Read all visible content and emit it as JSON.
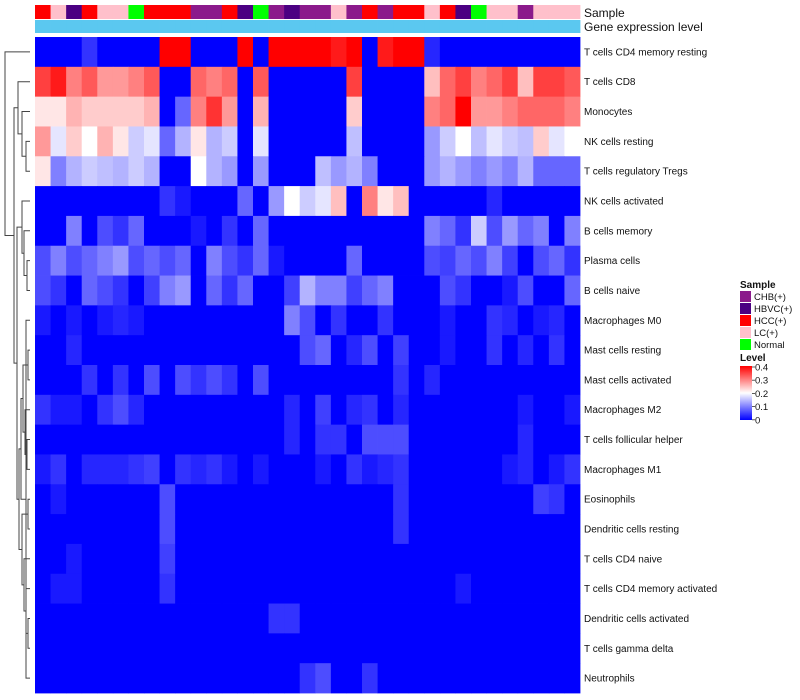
{
  "chart_data": {
    "type": "heatmap",
    "annotation_tracks": [
      "Sample",
      "Gene expression level"
    ],
    "row_labels": [
      "T cells CD4 memory resting",
      "T cells CD8",
      "Monocytes",
      "NK cells resting",
      "T cells regulatory  Tregs",
      "NK cells activated",
      "B cells memory",
      "Plasma cells",
      "B cells naive",
      "Macrophages M0",
      "Mast cells resting",
      "Mast cells activated",
      "Macrophages M2",
      "T cells follicular helper",
      "Macrophages M1",
      "Eosinophils",
      "Dendritic cells resting",
      "T cells CD4 naive",
      "T cells CD4 memory activated",
      "Dendritic cells activated",
      "T cells gamma delta",
      "Neutrophils"
    ],
    "sample_groups": [
      "HCC(+)",
      "LC(+)",
      "HBVC(+)",
      "HCC(+)",
      "LC(+)",
      "LC(+)",
      "Normal",
      "HCC(+)",
      "HCC(+)",
      "HCC(+)",
      "CHB(+)",
      "CHB(+)",
      "HCC(+)",
      "HBVC(+)",
      "Normal",
      "CHB(+)",
      "HBVC(+)",
      "CHB(+)",
      "CHB(+)",
      "LC(+)",
      "CHB(+)",
      "HCC(+)",
      "CHB(+)",
      "HCC(+)",
      "HCC(+)",
      "LC(+)",
      "HCC(+)",
      "HBVC(+)",
      "Normal",
      "LC(+)",
      "LC(+)",
      "CHB(+)",
      "LC(+)",
      "LC(+)",
      "LC(+)"
    ],
    "expression_level": [
      0.0,
      0.0,
      0.0,
      0.0,
      0.0,
      0.0,
      0.0,
      0.0,
      0.0,
      0.0,
      0.0,
      0.0,
      0.0,
      0.0,
      0.0,
      0.0,
      0.0,
      0.0,
      0.0,
      0.0,
      0.0,
      0.0,
      0.0,
      0.0,
      0.0,
      0.0,
      0.0,
      0.0,
      0.0,
      0.0,
      0.0,
      0.0,
      0.0,
      0.0,
      0.0
    ],
    "values": [
      [
        0.0,
        0.0,
        0.0,
        0.04,
        0.0,
        0.0,
        0.0,
        0.0,
        0.4,
        0.4,
        0.0,
        0.0,
        0.0,
        0.4,
        0.0,
        0.4,
        0.4,
        0.4,
        0.4,
        0.38,
        0.4,
        0.0,
        0.38,
        0.4,
        0.4,
        0.03,
        0.0,
        0.0,
        0.0,
        0.0,
        0.0,
        0.0,
        0.0,
        0.0,
        0.0
      ],
      [
        0.35,
        0.38,
        0.3,
        0.33,
        0.28,
        0.28,
        0.3,
        0.33,
        0.0,
        0.0,
        0.32,
        0.3,
        0.32,
        0.0,
        0.33,
        0.0,
        0.0,
        0.0,
        0.0,
        0.0,
        0.35,
        0.0,
        0.0,
        0.0,
        0.0,
        0.25,
        0.32,
        0.35,
        0.3,
        0.32,
        0.35,
        0.25,
        0.35,
        0.35,
        0.33
      ],
      [
        0.22,
        0.22,
        0.26,
        0.24,
        0.24,
        0.24,
        0.24,
        0.26,
        0.0,
        0.08,
        0.3,
        0.36,
        0.28,
        0.0,
        0.26,
        0.0,
        0.0,
        0.0,
        0.0,
        0.0,
        0.24,
        0.0,
        0.0,
        0.0,
        0.0,
        0.3,
        0.32,
        0.4,
        0.28,
        0.28,
        0.3,
        0.32,
        0.32,
        0.32,
        0.3
      ],
      [
        0.28,
        0.18,
        0.24,
        0.2,
        0.26,
        0.22,
        0.16,
        0.18,
        0.08,
        0.14,
        0.22,
        0.14,
        0.16,
        0.0,
        0.18,
        0.0,
        0.0,
        0.0,
        0.0,
        0.0,
        0.15,
        0.0,
        0.0,
        0.0,
        0.0,
        0.12,
        0.16,
        0.2,
        0.15,
        0.18,
        0.16,
        0.15,
        0.24,
        0.18,
        0.2
      ],
      [
        0.22,
        0.1,
        0.14,
        0.16,
        0.15,
        0.14,
        0.16,
        0.14,
        0.0,
        0.0,
        0.2,
        0.14,
        0.12,
        0.0,
        0.12,
        0.0,
        0.0,
        0.0,
        0.15,
        0.12,
        0.14,
        0.1,
        0.0,
        0.0,
        0.0,
        0.12,
        0.14,
        0.12,
        0.1,
        0.12,
        0.1,
        0.14,
        0.08,
        0.08,
        0.08
      ],
      [
        0.0,
        0.0,
        0.0,
        0.0,
        0.0,
        0.0,
        0.0,
        0.0,
        0.04,
        0.02,
        0.0,
        0.0,
        0.0,
        0.08,
        0.0,
        0.12,
        0.2,
        0.16,
        0.18,
        0.25,
        0.0,
        0.3,
        0.22,
        0.25,
        0.0,
        0.0,
        0.0,
        0.0,
        0.0,
        0.03,
        0.0,
        0.0,
        0.0,
        0.0,
        0.0
      ],
      [
        0.0,
        0.0,
        0.1,
        0.0,
        0.06,
        0.04,
        0.08,
        0.0,
        0.0,
        0.0,
        0.02,
        0.0,
        0.04,
        0.0,
        0.08,
        0.0,
        0.0,
        0.0,
        0.0,
        0.0,
        0.0,
        0.0,
        0.0,
        0.0,
        0.0,
        0.1,
        0.08,
        0.04,
        0.16,
        0.06,
        0.12,
        0.08,
        0.1,
        0.0,
        0.1
      ],
      [
        0.06,
        0.1,
        0.06,
        0.08,
        0.1,
        0.12,
        0.06,
        0.08,
        0.06,
        0.08,
        0.0,
        0.1,
        0.06,
        0.04,
        0.08,
        0.02,
        0.0,
        0.0,
        0.0,
        0.0,
        0.08,
        0.0,
        0.0,
        0.0,
        0.0,
        0.06,
        0.05,
        0.08,
        0.06,
        0.1,
        0.05,
        0.0,
        0.06,
        0.08,
        0.04
      ],
      [
        0.06,
        0.04,
        0.0,
        0.08,
        0.06,
        0.04,
        0.0,
        0.05,
        0.1,
        0.12,
        0.0,
        0.08,
        0.04,
        0.08,
        0.0,
        0.0,
        0.05,
        0.14,
        0.1,
        0.1,
        0.05,
        0.08,
        0.1,
        0.0,
        0.0,
        0.0,
        0.06,
        0.04,
        0.0,
        0.0,
        0.02,
        0.06,
        0.0,
        0.0,
        0.08
      ],
      [
        0.02,
        0.0,
        0.02,
        0.0,
        0.02,
        0.03,
        0.02,
        0.0,
        0.0,
        0.0,
        0.0,
        0.0,
        0.0,
        0.0,
        0.0,
        0.0,
        0.1,
        0.06,
        0.0,
        0.04,
        0.0,
        0.0,
        0.04,
        0.0,
        0.0,
        0.0,
        0.02,
        0.0,
        0.0,
        0.04,
        0.03,
        0.0,
        0.02,
        0.03,
        0.0
      ],
      [
        0.0,
        0.0,
        0.03,
        0.0,
        0.0,
        0.0,
        0.0,
        0.0,
        0.0,
        0.0,
        0.0,
        0.0,
        0.0,
        0.0,
        0.0,
        0.0,
        0.0,
        0.06,
        0.08,
        0.0,
        0.03,
        0.06,
        0.0,
        0.05,
        0.0,
        0.0,
        0.02,
        0.0,
        0.0,
        0.04,
        0.0,
        0.03,
        0.0,
        0.04,
        0.0
      ],
      [
        0.0,
        0.0,
        0.0,
        0.04,
        0.0,
        0.04,
        0.0,
        0.06,
        0.0,
        0.06,
        0.04,
        0.06,
        0.04,
        0.0,
        0.06,
        0.0,
        0.0,
        0.0,
        0.0,
        0.0,
        0.0,
        0.0,
        0.0,
        0.04,
        0.0,
        0.03,
        0.0,
        0.0,
        0.0,
        0.0,
        0.0,
        0.0,
        0.0,
        0.0,
        0.0
      ],
      [
        0.04,
        0.02,
        0.02,
        0.0,
        0.04,
        0.06,
        0.03,
        0.0,
        0.0,
        0.0,
        0.0,
        0.0,
        0.0,
        0.0,
        0.0,
        0.0,
        0.03,
        0.0,
        0.05,
        0.0,
        0.03,
        0.04,
        0.0,
        0.03,
        0.0,
        0.0,
        0.0,
        0.0,
        0.0,
        0.0,
        0.0,
        0.02,
        0.0,
        0.0,
        0.02
      ],
      [
        0.0,
        0.0,
        0.0,
        0.0,
        0.0,
        0.0,
        0.0,
        0.0,
        0.0,
        0.0,
        0.0,
        0.0,
        0.0,
        0.0,
        0.0,
        0.0,
        0.03,
        0.0,
        0.04,
        0.04,
        0.0,
        0.06,
        0.06,
        0.06,
        0.0,
        0.0,
        0.0,
        0.0,
        0.0,
        0.0,
        0.0,
        0.03,
        0.0,
        0.0,
        0.0
      ],
      [
        0.02,
        0.04,
        0.0,
        0.03,
        0.03,
        0.03,
        0.04,
        0.05,
        0.0,
        0.04,
        0.03,
        0.04,
        0.02,
        0.0,
        0.02,
        0.0,
        0.0,
        0.0,
        0.02,
        0.0,
        0.04,
        0.02,
        0.03,
        0.04,
        0.0,
        0.0,
        0.0,
        0.0,
        0.0,
        0.0,
        0.02,
        0.03,
        0.0,
        0.02,
        0.04
      ],
      [
        0.0,
        0.02,
        0.0,
        0.0,
        0.0,
        0.0,
        0.0,
        0.0,
        0.06,
        0.0,
        0.0,
        0.0,
        0.0,
        0.0,
        0.0,
        0.0,
        0.0,
        0.0,
        0.0,
        0.0,
        0.0,
        0.0,
        0.0,
        0.04,
        0.0,
        0.0,
        0.0,
        0.0,
        0.0,
        0.0,
        0.0,
        0.0,
        0.05,
        0.04,
        0.0
      ],
      [
        0.0,
        0.0,
        0.0,
        0.0,
        0.0,
        0.0,
        0.0,
        0.0,
        0.06,
        0.0,
        0.0,
        0.0,
        0.0,
        0.0,
        0.0,
        0.0,
        0.0,
        0.0,
        0.0,
        0.0,
        0.0,
        0.0,
        0.0,
        0.04,
        0.0,
        0.0,
        0.0,
        0.0,
        0.0,
        0.0,
        0.0,
        0.0,
        0.0,
        0.0,
        0.0
      ],
      [
        0.0,
        0.0,
        0.02,
        0.0,
        0.0,
        0.0,
        0.0,
        0.0,
        0.05,
        0.0,
        0.0,
        0.0,
        0.0,
        0.0,
        0.0,
        0.0,
        0.0,
        0.0,
        0.0,
        0.0,
        0.0,
        0.0,
        0.0,
        0.0,
        0.0,
        0.0,
        0.0,
        0.0,
        0.0,
        0.0,
        0.0,
        0.0,
        0.0,
        0.0,
        0.0
      ],
      [
        0.0,
        0.02,
        0.02,
        0.0,
        0.0,
        0.0,
        0.0,
        0.0,
        0.04,
        0.0,
        0.0,
        0.0,
        0.0,
        0.0,
        0.0,
        0.0,
        0.0,
        0.0,
        0.0,
        0.0,
        0.0,
        0.0,
        0.0,
        0.0,
        0.0,
        0.0,
        0.0,
        0.02,
        0.0,
        0.0,
        0.0,
        0.0,
        0.0,
        0.0,
        0.0
      ],
      [
        0.0,
        0.0,
        0.0,
        0.0,
        0.0,
        0.0,
        0.0,
        0.0,
        0.0,
        0.0,
        0.0,
        0.0,
        0.0,
        0.0,
        0.0,
        0.04,
        0.04,
        0.0,
        0.0,
        0.0,
        0.0,
        0.0,
        0.0,
        0.0,
        0.0,
        0.0,
        0.0,
        0.0,
        0.0,
        0.0,
        0.0,
        0.0,
        0.0,
        0.0,
        0.0
      ],
      [
        0.0,
        0.0,
        0.0,
        0.0,
        0.0,
        0.0,
        0.0,
        0.0,
        0.0,
        0.0,
        0.0,
        0.0,
        0.0,
        0.0,
        0.0,
        0.0,
        0.0,
        0.0,
        0.0,
        0.0,
        0.0,
        0.0,
        0.0,
        0.0,
        0.0,
        0.0,
        0.0,
        0.0,
        0.0,
        0.0,
        0.0,
        0.0,
        0.0,
        0.0,
        0.0
      ],
      [
        0.0,
        0.0,
        0.0,
        0.0,
        0.0,
        0.0,
        0.0,
        0.0,
        0.0,
        0.0,
        0.0,
        0.0,
        0.0,
        0.0,
        0.0,
        0.0,
        0.0,
        0.04,
        0.06,
        0.0,
        0.0,
        0.04,
        0.0,
        0.0,
        0.0,
        0.0,
        0.0,
        0.0,
        0.0,
        0.0,
        0.0,
        0.0,
        0.0,
        0.0,
        0.0
      ]
    ],
    "legend": {
      "sample_title": "Sample",
      "groups": [
        {
          "name": "CHB(+)",
          "color": "#8b1a8b"
        },
        {
          "name": "HBVC(+)",
          "color": "#4b0082"
        },
        {
          "name": "HCC(+)",
          "color": "#ff0000"
        },
        {
          "name": "LC(+)",
          "color": "#ffc0cb"
        },
        {
          "name": "Normal",
          "color": "#00ff00"
        }
      ],
      "level_title": "Level",
      "level_ticks": [
        "0.4",
        "0.3",
        "0.2",
        "0.1",
        "0"
      ],
      "level_range": [
        0,
        0.4
      ]
    },
    "colors": {
      "low": "#0000ff",
      "mid": "#ffffff",
      "high": "#ff0000",
      "expression_track": "#5bc8f0"
    }
  }
}
